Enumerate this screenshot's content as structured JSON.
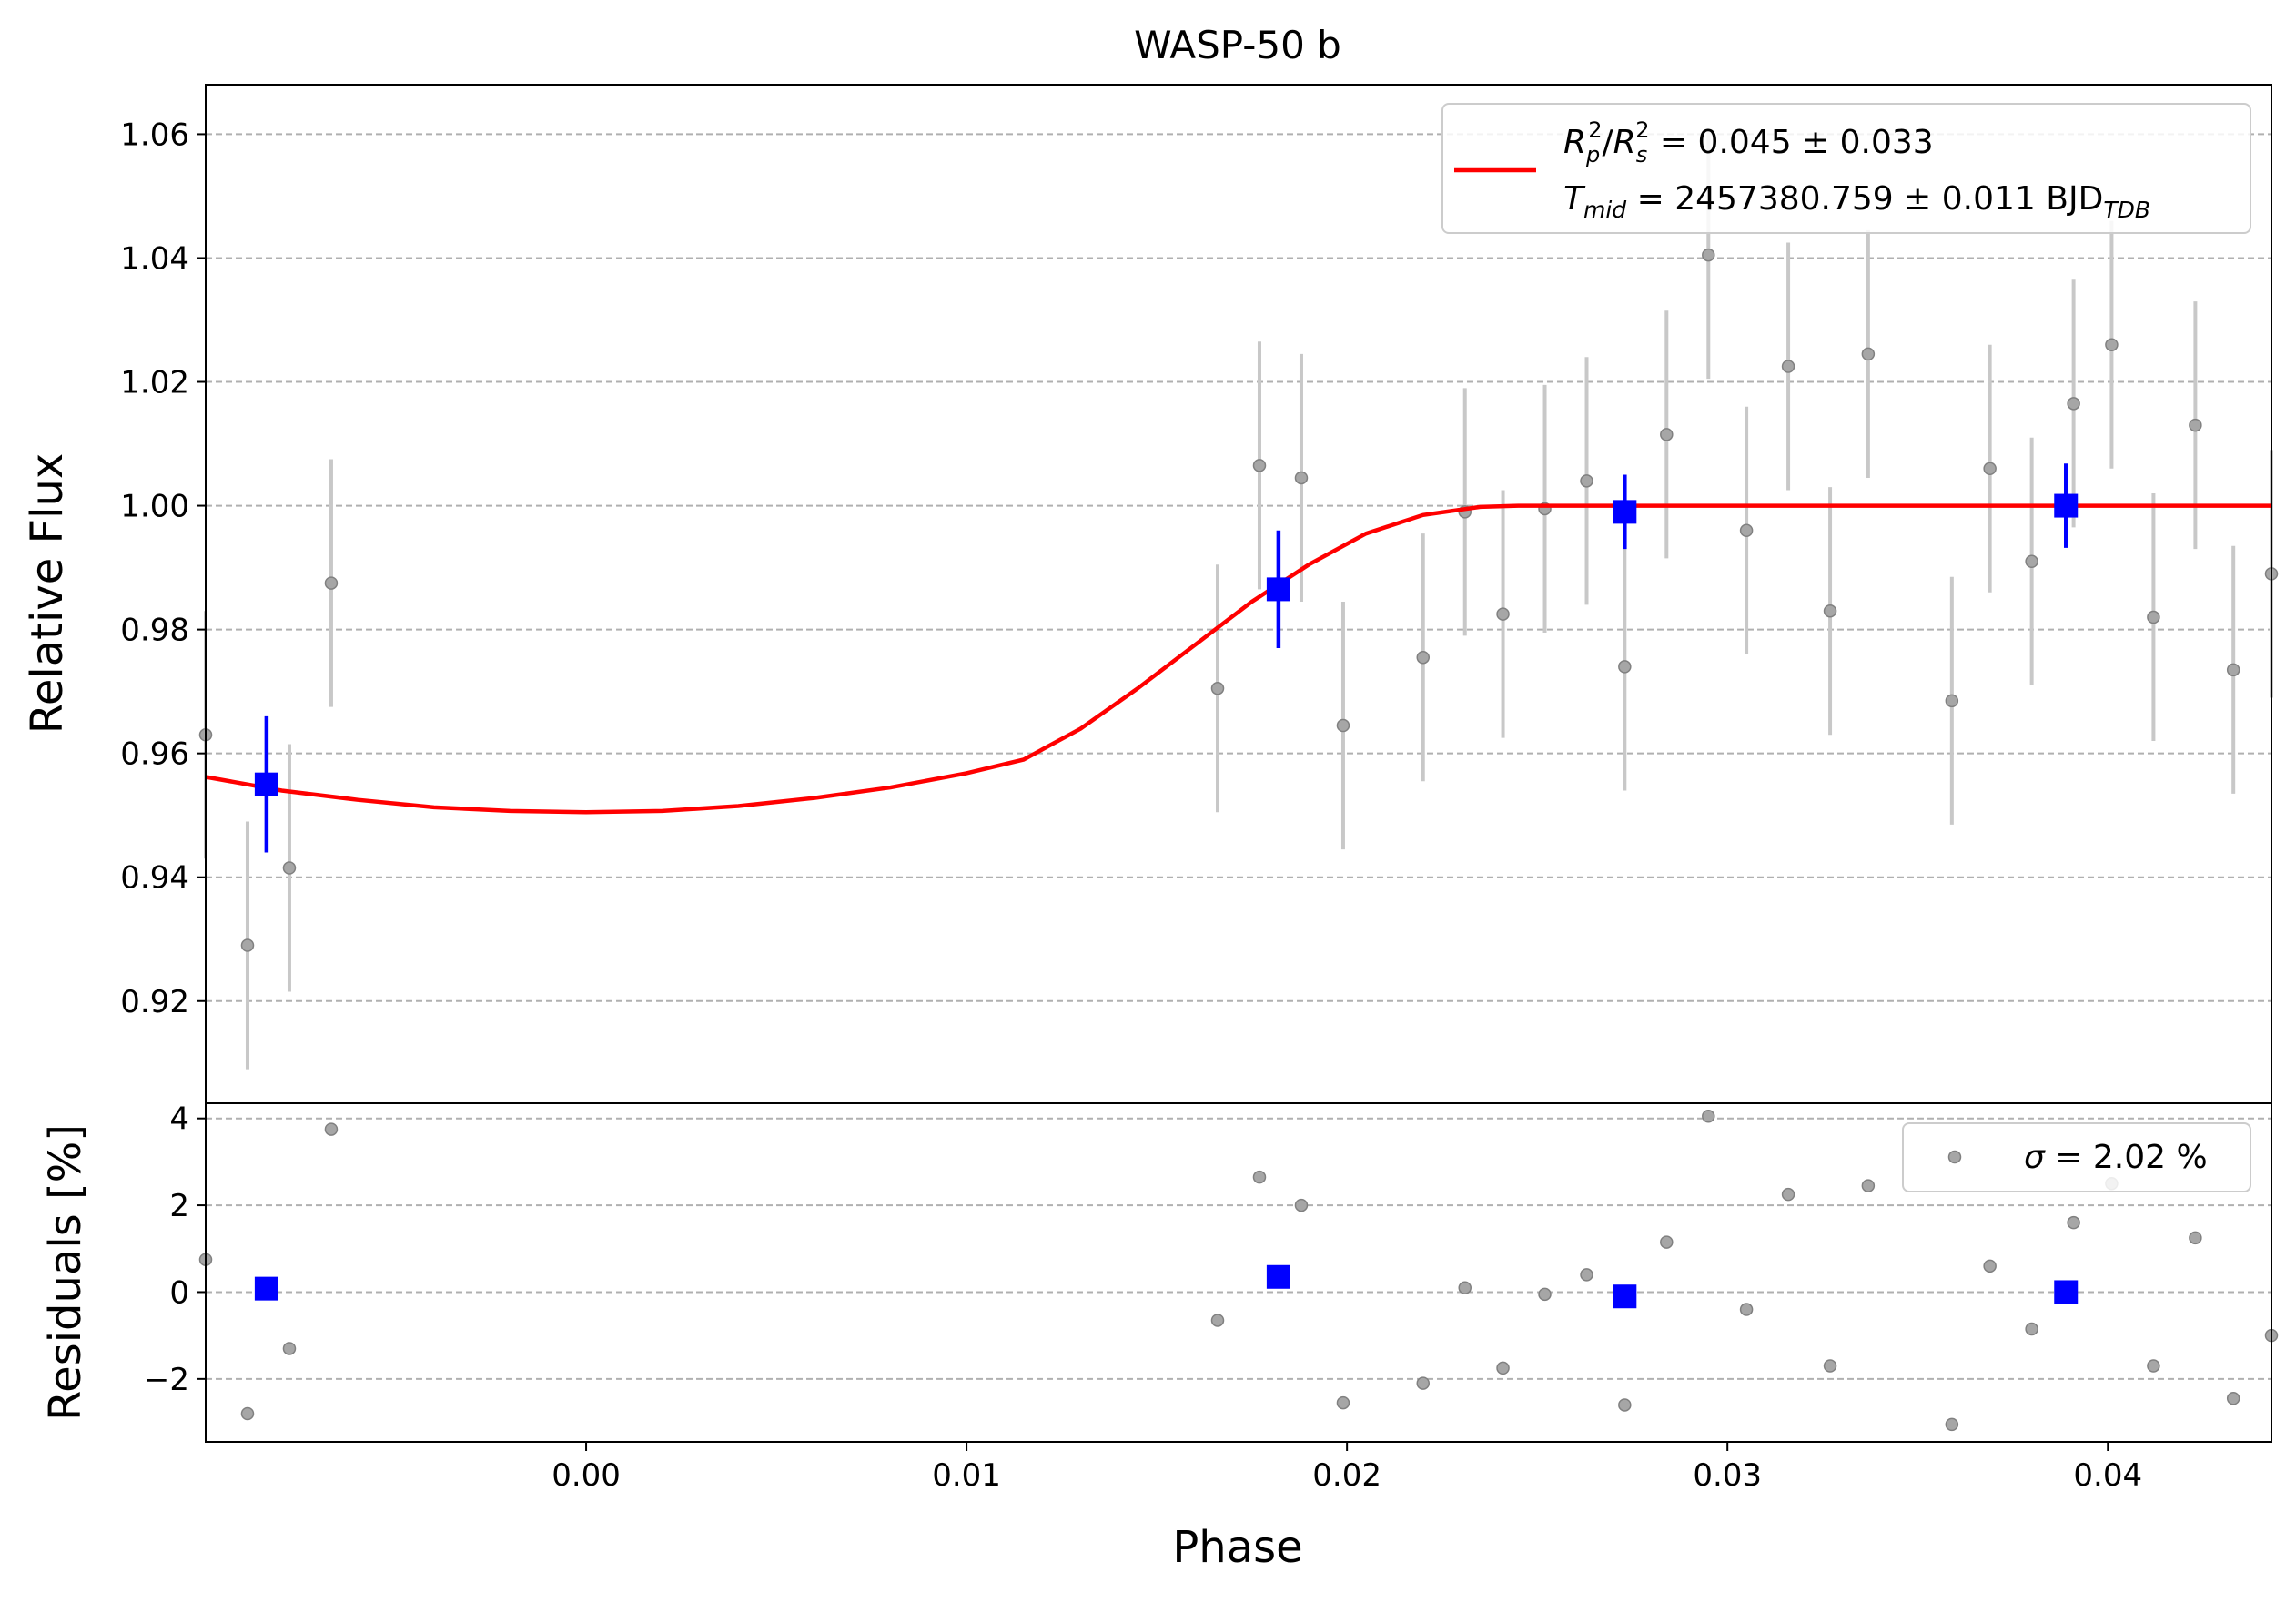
{
  "chart_data": [
    {
      "type": "scatter",
      "panel": "top",
      "title": "WASP-50 b",
      "ylabel": "Relative Flux",
      "xlim": [
        -0.01,
        0.0443
      ],
      "ylim": [
        0.9035,
        1.068
      ],
      "yticks": [
        "0.92",
        "0.94",
        "0.96",
        "0.98",
        "1.00",
        "1.02",
        "1.04",
        "1.06"
      ],
      "ytick_values": [
        0.92,
        0.94,
        0.96,
        0.98,
        1.0,
        1.02,
        1.04,
        1.06
      ],
      "grid": true,
      "legend": {
        "position": "top-right",
        "line1": {
          "sym": "R",
          "sub1": "p",
          "sup1": "2",
          "slash": "/",
          "sub2": "s",
          "sup2": "2",
          "value": " = 0.045 ± 0.033"
        },
        "line2": {
          "sym": "T",
          "sub": "mid",
          "value": " = 2457380.759 ± 0.011 BJD",
          "unit_sub": "TDB"
        }
      },
      "raw_data": {
        "x": [
          -0.01,
          -0.0089,
          -0.0078,
          -0.0067,
          0.0166,
          0.0177,
          0.0188,
          0.0199,
          0.022,
          0.0231,
          0.0241,
          0.0252,
          0.0263,
          0.0273,
          0.0284,
          0.0295,
          0.0305,
          0.0316,
          0.0327,
          0.0337,
          0.0359,
          0.0369,
          0.038,
          0.0391,
          0.0401,
          0.0412,
          0.0423,
          0.0433,
          0.0443
        ],
        "y": [
          0.963,
          0.929,
          0.9415,
          0.9875,
          0.9705,
          1.0065,
          1.0045,
          0.9645,
          0.9755,
          0.999,
          0.9825,
          0.9995,
          1.004,
          0.974,
          1.0115,
          1.0405,
          0.996,
          1.0225,
          0.983,
          1.0245,
          0.9685,
          1.006,
          0.991,
          1.0165,
          1.026,
          0.982,
          1.013,
          0.9735,
          0.989
        ],
        "yerr": 0.02,
        "color": "#808080"
      },
      "binned_data": {
        "x": [
          -0.0084,
          0.0182,
          0.0273,
          0.0389
        ],
        "y": [
          0.955,
          0.9865,
          0.999,
          1.0
        ],
        "yerr": [
          0.011,
          0.0095,
          0.006,
          0.0068
        ],
        "color": "#0000ff"
      },
      "model": {
        "x": [
          -0.01,
          -0.008,
          -0.006,
          -0.004,
          -0.002,
          0.0,
          0.002,
          0.004,
          0.006,
          0.008,
          0.01,
          0.0115,
          0.013,
          0.0145,
          0.016,
          0.0175,
          0.019,
          0.0205,
          0.022,
          0.0235,
          0.0245,
          0.027,
          0.03,
          0.035,
          0.04,
          0.0443
        ],
        "y": [
          0.9562,
          0.954,
          0.9525,
          0.9513,
          0.9507,
          0.9505,
          0.9507,
          0.9515,
          0.9528,
          0.9545,
          0.9568,
          0.959,
          0.964,
          0.9705,
          0.9775,
          0.9845,
          0.9905,
          0.9955,
          0.9985,
          0.9998,
          1.0,
          1.0,
          1.0,
          1.0,
          1.0,
          1.0
        ],
        "color": "#ff0000"
      }
    },
    {
      "type": "scatter",
      "panel": "bottom",
      "xlabel": "Phase",
      "ylabel": "Residuals [%]",
      "xlim": [
        -0.01,
        0.0443
      ],
      "ylim": [
        -3.45,
        4.35
      ],
      "xticks": [
        "0.00",
        "0.01",
        "0.02",
        "0.03",
        "0.04"
      ],
      "xtick_values": [
        0.0,
        0.01,
        0.02,
        0.03,
        0.04
      ],
      "yticks": [
        "−2",
        "0",
        "2",
        "4"
      ],
      "ytick_values": [
        -2,
        0,
        2,
        4
      ],
      "grid": true,
      "legend": {
        "position": "top-right",
        "sym": "σ",
        "value": " = 2.02 %"
      },
      "raw_data": {
        "x": [
          -0.01,
          -0.0089,
          -0.0078,
          -0.0067,
          0.0166,
          0.0177,
          0.0188,
          0.0199,
          0.022,
          0.0231,
          0.0241,
          0.0252,
          0.0263,
          0.0273,
          0.0284,
          0.0295,
          0.0305,
          0.0316,
          0.0327,
          0.0337,
          0.0359,
          0.0369,
          0.038,
          0.0391,
          0.0401,
          0.0412,
          0.0423,
          0.0433,
          0.0443
        ],
        "y": [
          0.75,
          -2.8,
          -1.3,
          3.75,
          -0.65,
          2.65,
          2.0,
          -2.55,
          -2.1,
          0.1,
          -1.75,
          -0.05,
          0.4,
          -2.6,
          1.15,
          4.05,
          -0.4,
          2.25,
          -1.7,
          2.45,
          -3.05,
          0.6,
          -0.85,
          1.6,
          2.5,
          -1.7,
          1.25,
          -2.45,
          -1.0
        ]
      },
      "binned_data": {
        "x": [
          -0.0084,
          0.0182,
          0.0273,
          0.0389
        ],
        "y": [
          0.08,
          0.35,
          -0.1,
          0.0
        ]
      }
    }
  ]
}
